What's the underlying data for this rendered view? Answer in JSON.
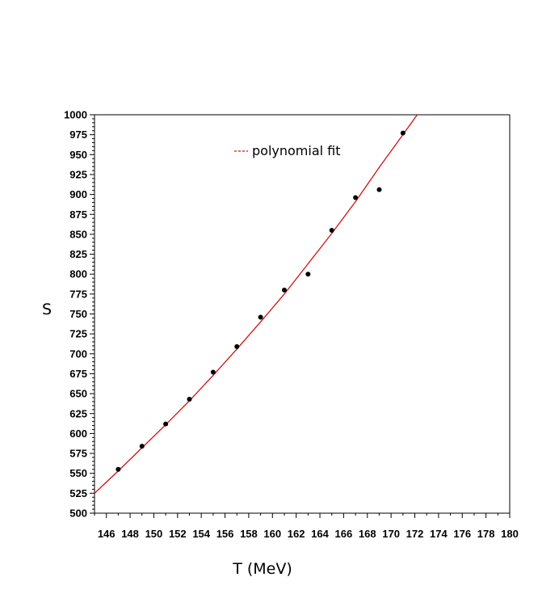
{
  "chart_data": {
    "type": "scatter",
    "xlabel": "T (MeV)",
    "ylabel": "S",
    "xlim": [
      145,
      180
    ],
    "ylim": [
      500,
      1000
    ],
    "x_ticks": [
      146,
      148,
      150,
      152,
      154,
      156,
      158,
      160,
      162,
      164,
      166,
      168,
      170,
      172,
      174,
      176,
      178,
      180
    ],
    "y_ticks": [
      500,
      525,
      550,
      575,
      600,
      625,
      650,
      675,
      700,
      725,
      750,
      775,
      800,
      825,
      850,
      875,
      900,
      925,
      950,
      975,
      1000
    ],
    "grid": false,
    "legend_position": "top-center",
    "series": [
      {
        "kind": "points",
        "color": "#000000",
        "x": [
          147,
          149,
          151,
          153,
          155,
          157,
          159,
          161,
          163,
          165,
          167,
          169,
          171
        ],
        "y": [
          555,
          584,
          612,
          643,
          677,
          709,
          746,
          780,
          800,
          855,
          896,
          906,
          977
        ]
      },
      {
        "name": "polynomial fit",
        "kind": "line",
        "color": "#d01010",
        "x": [
          145,
          147,
          149,
          151,
          153,
          155,
          157,
          159,
          161,
          163,
          165,
          167,
          169,
          171,
          172.2
        ],
        "y": [
          525,
          553,
          582,
          611,
          641,
          673,
          706,
          740,
          775,
          813,
          851,
          891,
          934,
          975,
          1000
        ]
      }
    ]
  }
}
